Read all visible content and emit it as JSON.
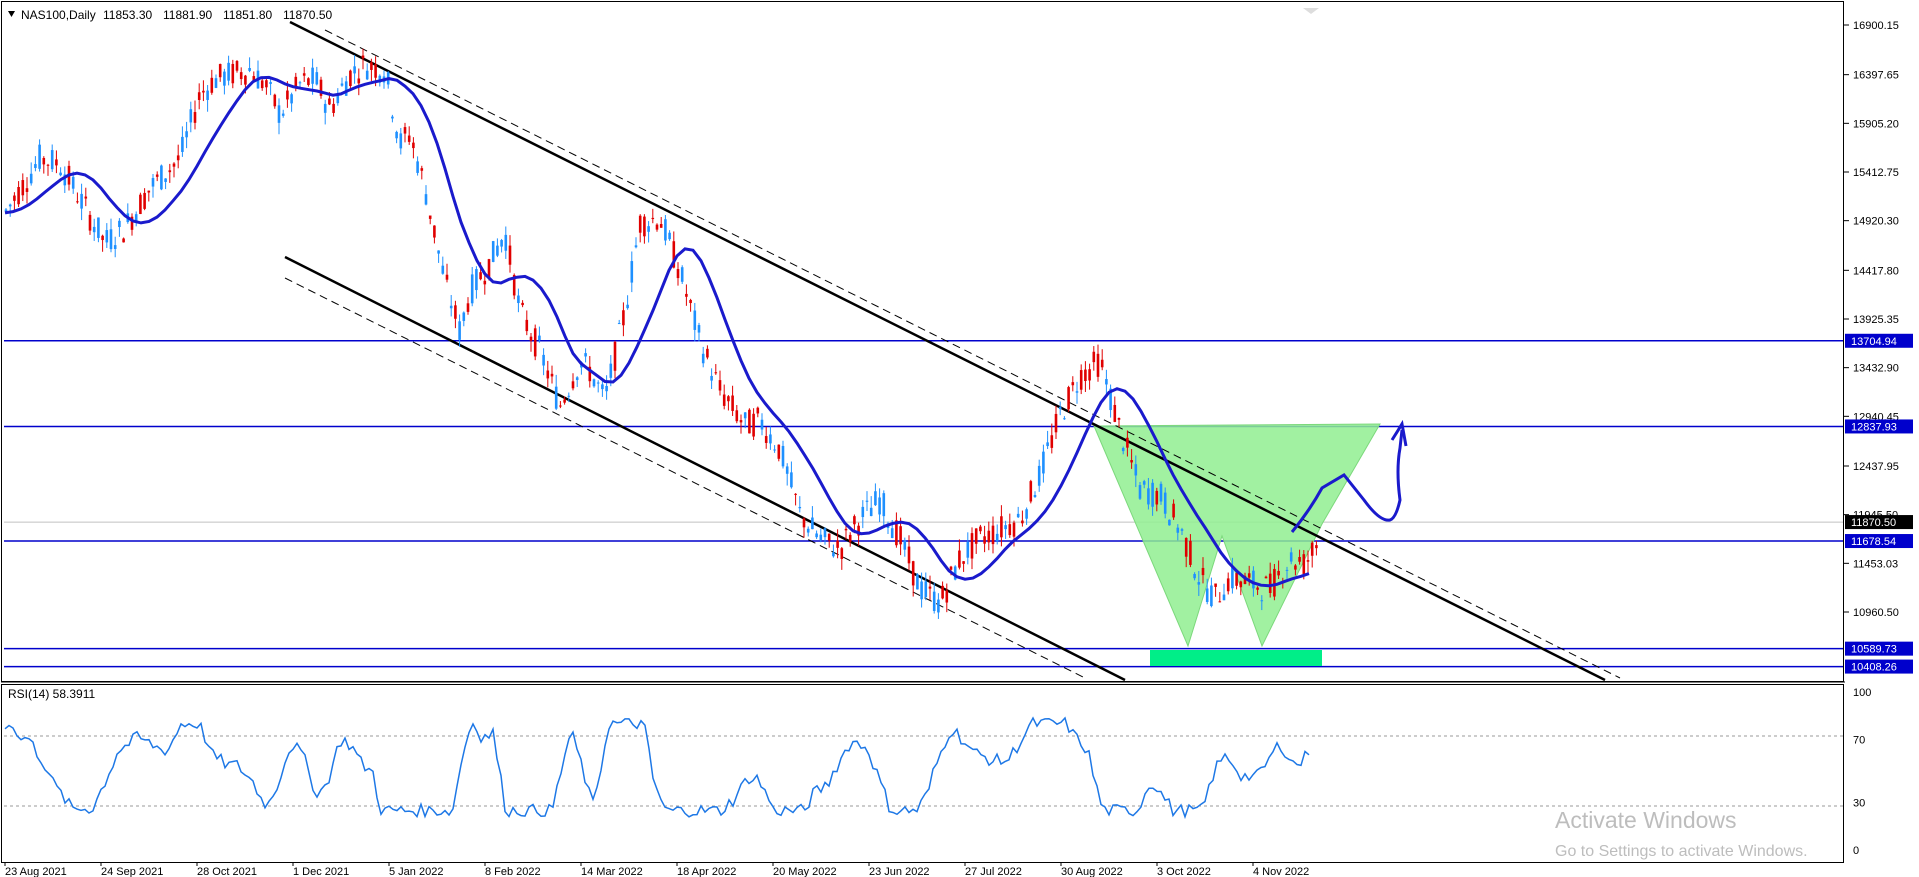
{
  "header": {
    "symbol": "NAS100,Daily",
    "open": "11853.30",
    "high": "11881.90",
    "low": "11851.80",
    "close": "11870.50"
  },
  "rsi": {
    "label": "RSI(14) 58.3911",
    "levels": [
      "100",
      "70",
      "30",
      "0"
    ]
  },
  "price_labels": [
    "16900.15",
    "16397.65",
    "15905.20",
    "15412.75",
    "14920.30",
    "14417.80",
    "13925.35",
    "13432.90",
    "12940.45",
    "12437.95",
    "11945.50",
    "11453.03",
    "10960.50"
  ],
  "level_badges": [
    {
      "value": "13704.94",
      "color": "#0000cc"
    },
    {
      "value": "12837.93",
      "color": "#0000cc"
    },
    {
      "value": "11870.50",
      "color": "#000000"
    },
    {
      "value": "11678.54",
      "color": "#0000cc"
    },
    {
      "value": "10589.73",
      "color": "#0000cc"
    },
    {
      "value": "10408.26",
      "color": "#0000cc"
    }
  ],
  "date_labels": [
    "23 Aug 2021",
    "24 Sep 2021",
    "28 Oct 2021",
    "1 Dec 2021",
    "5 Jan 2022",
    "8 Feb 2022",
    "14 Mar 2022",
    "18 Apr 2022",
    "20 May 2022",
    "23 Jun 2022",
    "27 Jul 2022",
    "30 Aug 2022",
    "3 Oct 2022",
    "4 Nov 2022"
  ],
  "watermark": {
    "line1": "Activate Windows",
    "line2": "Go to Settings to activate Windows."
  },
  "colors": {
    "bull": "#1e90ff",
    "bear": "#e00000",
    "ma": "#1a1acc",
    "level": "#0000cc",
    "rsi": "#1e78e6",
    "pattern": "#90ee90",
    "zone": "#00ee88"
  },
  "chart_data": {
    "type": "candlestick",
    "symbol": "NAS100",
    "timeframe": "Daily",
    "ohlc_last": {
      "open": 11853.3,
      "high": 11881.9,
      "low": 11851.8,
      "close": 11870.5
    },
    "horizontal_levels": [
      13704.94,
      12837.93,
      11678.54,
      10589.73,
      10408.26
    ],
    "current_price": 11870.5,
    "price_axis_range": [
      10300,
      17000
    ],
    "rsi_period": 14,
    "rsi_last": 58.3911,
    "rsi_levels": [
      70,
      30
    ],
    "rsi_axis_range": [
      0,
      100
    ],
    "date_range": [
      "23 Aug 2021",
      "4 Nov 2022"
    ]
  }
}
